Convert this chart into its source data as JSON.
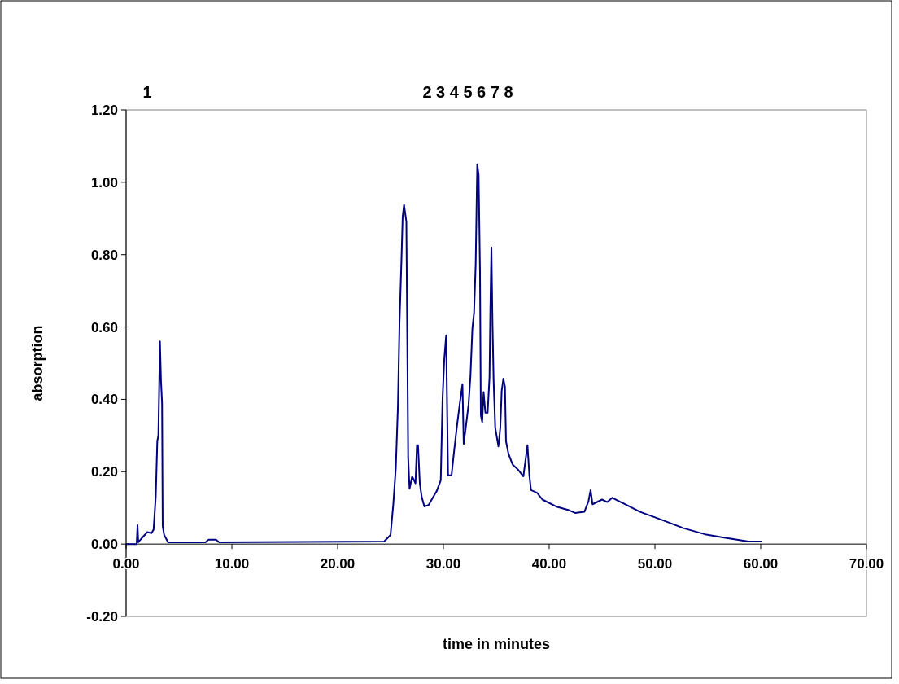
{
  "chart_data": {
    "type": "line",
    "xlabel": "time in minutes",
    "ylabel": "absorption",
    "annotations": [
      "1",
      "2 3 4 5 6 7 8"
    ],
    "xlim": [
      0,
      70
    ],
    "ylim": [
      -0.2,
      1.2
    ],
    "xticks": [
      {
        "value": 0,
        "label": "0.00"
      },
      {
        "value": 10,
        "label": "10.00"
      },
      {
        "value": 20,
        "label": "20.00"
      },
      {
        "value": 30,
        "label": "30.00"
      },
      {
        "value": 40,
        "label": "40.00"
      },
      {
        "value": 50,
        "label": "50.00"
      },
      {
        "value": 60,
        "label": "60.00"
      },
      {
        "value": 70,
        "label": "70.00"
      }
    ],
    "yticks": [
      {
        "value": -0.2,
        "label": "-0.20"
      },
      {
        "value": 0,
        "label": "0.00"
      },
      {
        "value": 0.2,
        "label": "0.20"
      },
      {
        "value": 0.4,
        "label": "0.40"
      },
      {
        "value": 0.6,
        "label": "0.60"
      },
      {
        "value": 0.8,
        "label": "0.80"
      },
      {
        "value": 1.0,
        "label": "1.00"
      },
      {
        "value": 1.2,
        "label": "1.20"
      }
    ],
    "grid": false,
    "marker": "none",
    "line_style": "solid",
    "series": [
      {
        "color": "#000080",
        "x": [
          0,
          1.0,
          1.08,
          1.15,
          1.3,
          1.6,
          2.0,
          2.4,
          2.6,
          2.8,
          2.95,
          3.05,
          3.2,
          3.3,
          3.4,
          3.46,
          3.6,
          3.97,
          7.5,
          7.8,
          8.5,
          8.8,
          24.4,
          25.0,
          25.26,
          25.5,
          25.7,
          25.85,
          26.03,
          26.15,
          26.28,
          26.5,
          26.6,
          26.67,
          26.8,
          27.05,
          27.36,
          27.5,
          27.6,
          27.77,
          27.95,
          28.2,
          28.6,
          28.97,
          29.36,
          29.75,
          29.92,
          30.08,
          30.26,
          30.33,
          30.44,
          30.77,
          31.0,
          31.28,
          31.54,
          31.8,
          31.92,
          32.13,
          32.38,
          32.56,
          32.74,
          32.9,
          33.05,
          33.2,
          33.33,
          33.46,
          33.54,
          33.67,
          33.8,
          33.97,
          34.18,
          34.36,
          34.44,
          34.54,
          34.64,
          34.75,
          34.9,
          35.2,
          35.38,
          35.51,
          35.67,
          35.82,
          35.92,
          36.15,
          36.54,
          37.05,
          37.56,
          37.95,
          38.13,
          38.28,
          38.85,
          39.36,
          40.64,
          41.92,
          42.44,
          43.33,
          43.72,
          43.92,
          44.1,
          45.0,
          45.5,
          45.97,
          47.05,
          48.6,
          50.64,
          52.7,
          54.74,
          56.54,
          58.85,
          60.08
        ],
        "values": [
          0,
          0,
          0.052,
          0.005,
          0.01,
          0.02,
          0.033,
          0.03,
          0.04,
          0.13,
          0.285,
          0.3,
          0.56,
          0.45,
          0.39,
          0.05,
          0.025,
          0.005,
          0.005,
          0.012,
          0.012,
          0.005,
          0.007,
          0.025,
          0.108,
          0.21,
          0.38,
          0.61,
          0.78,
          0.905,
          0.938,
          0.89,
          0.51,
          0.24,
          0.153,
          0.187,
          0.168,
          0.273,
          0.273,
          0.168,
          0.13,
          0.104,
          0.108,
          0.127,
          0.146,
          0.176,
          0.4,
          0.51,
          0.577,
          0.423,
          0.19,
          0.19,
          0.254,
          0.326,
          0.386,
          0.442,
          0.277,
          0.326,
          0.386,
          0.465,
          0.596,
          0.64,
          0.772,
          1.05,
          1.02,
          0.754,
          0.356,
          0.337,
          0.42,
          0.363,
          0.363,
          0.461,
          0.649,
          0.82,
          0.611,
          0.45,
          0.322,
          0.27,
          0.322,
          0.423,
          0.457,
          0.435,
          0.284,
          0.25,
          0.22,
          0.206,
          0.187,
          0.273,
          0.19,
          0.149,
          0.142,
          0.123,
          0.104,
          0.093,
          0.086,
          0.089,
          0.119,
          0.149,
          0.11,
          0.123,
          0.116,
          0.128,
          0.112,
          0.089,
          0.067,
          0.044,
          0.027,
          0.018,
          0.007,
          0.007
        ]
      }
    ]
  }
}
